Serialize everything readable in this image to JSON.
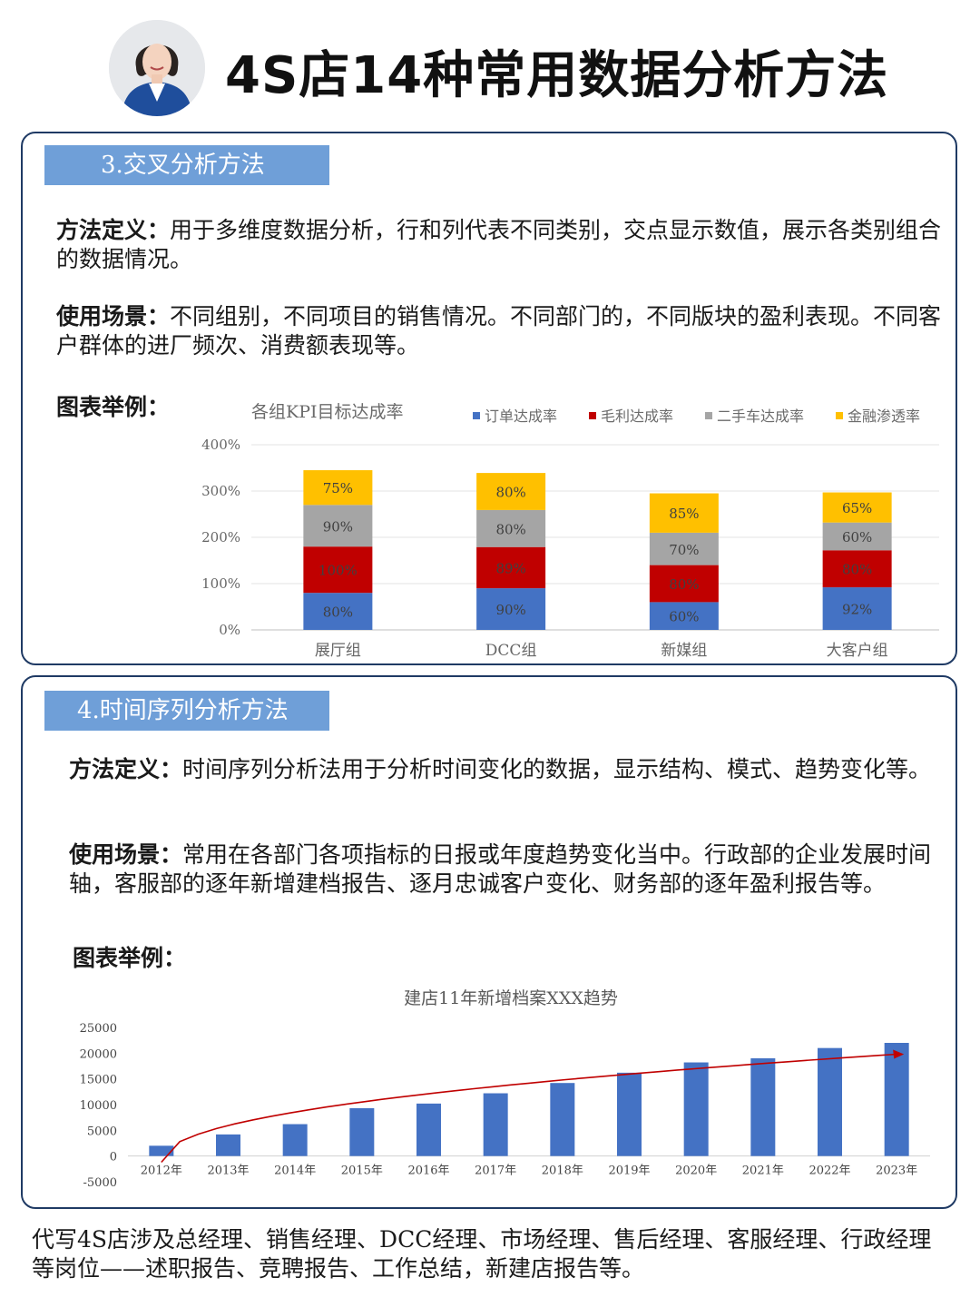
{
  "header": {
    "title": "4S店14种常用数据分析方法"
  },
  "sections": [
    {
      "title": "3.交叉分析方法",
      "definition_label": "方法定义：",
      "definition_text": "用于多维度数据分析，行和列代表不同类别，交点显示数值，展示各类别组合的数据情况。",
      "scenario_label": "使用场景：",
      "scenario_text": "不同组别，不同项目的销售情况。不同部门的，不同版块的盈利表现。不同客户群体的进厂频次、消费额表现等。",
      "chart_label": "图表举例："
    },
    {
      "title": "4.时间序列分析方法",
      "definition_label": "方法定义：",
      "definition_text": "时间序列分析法用于分析时间变化的数据，显示结构、模式、趋势变化等。",
      "scenario_label": "使用场景：",
      "scenario_text": "常用在各部门各项指标的日报或年度趋势变化当中。行政部的企业发展时间轴，客服部的逐年新增建档报告、逐月忠诚客户变化、财务部的逐年盈利报告等。",
      "chart_label": "图表举例："
    }
  ],
  "chart_data": [
    {
      "type": "bar",
      "stacked": true,
      "title": "各组KPI目标达成率",
      "categories": [
        "展厅组",
        "DCC组",
        "新媒组",
        "大客户组"
      ],
      "series": [
        {
          "name": "订单达成率",
          "color": "#4472c4",
          "values": [
            80,
            90,
            60,
            92
          ],
          "labels": [
            "80%",
            "90%",
            "60%",
            "92%"
          ]
        },
        {
          "name": "毛利达成率",
          "color": "#c00000",
          "values": [
            100,
            89,
            80,
            80
          ],
          "labels": [
            "100%",
            "89%",
            "80%",
            "80%"
          ]
        },
        {
          "name": "二手车达成率",
          "color": "#a5a5a5",
          "values": [
            90,
            80,
            70,
            60
          ],
          "labels": [
            "90%",
            "80%",
            "70%",
            "60%"
          ]
        },
        {
          "name": "金融渗透率",
          "color": "#ffc000",
          "values": [
            75,
            80,
            85,
            65
          ],
          "labels": [
            "75%",
            "80%",
            "85%",
            "65%"
          ]
        }
      ],
      "ylim": [
        0,
        400
      ],
      "yticks": [
        "0%",
        "100%",
        "200%",
        "300%",
        "400%"
      ],
      "grid": true,
      "legend": "top"
    },
    {
      "type": "bar",
      "title": "建店11年新增档案XXX趋势",
      "categories": [
        "2012年",
        "2013年",
        "2014年",
        "2015年",
        "2016年",
        "2017年",
        "2018年",
        "2019年",
        "2020年",
        "2021年",
        "2022年",
        "2023年"
      ],
      "series": [
        {
          "color": "#4472c4",
          "values": [
            2000,
            4200,
            6200,
            9300,
            10200,
            12200,
            14200,
            16200,
            18200,
            19000,
            21000,
            22000
          ]
        }
      ],
      "ylim": [
        -5000,
        25000
      ],
      "yticks": [
        "-5000",
        "0",
        "5000",
        "10000",
        "15000",
        "20000",
        "25000"
      ],
      "trend_color": "#c00000"
    }
  ],
  "footer": "代写4S店涉及总经理、销售经理、DCC经理、市场经理、售后经理、客服经理、行政经理等岗位——述职报告、竞聘报告、工作总结，新建店报告等。"
}
